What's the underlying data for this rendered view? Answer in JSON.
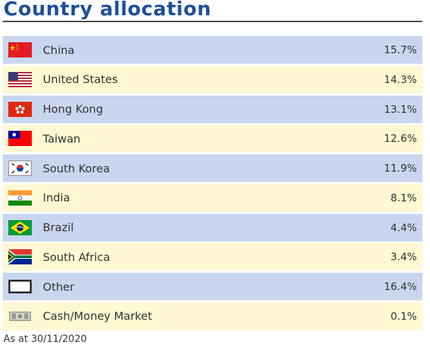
{
  "title": "Country allocation",
  "rows": [
    {
      "name": "China",
      "percent": "15.7%",
      "icon": "china-flag-icon"
    },
    {
      "name": "United States",
      "percent": "14.3%",
      "icon": "us-flag-icon"
    },
    {
      "name": "Hong Kong",
      "percent": "13.1%",
      "icon": "hong-kong-flag-icon"
    },
    {
      "name": "Taiwan",
      "percent": "12.6%",
      "icon": "taiwan-flag-icon"
    },
    {
      "name": "South Korea",
      "percent": "11.9%",
      "icon": "south-korea-flag-icon"
    },
    {
      "name": "India",
      "percent": "8.1%",
      "icon": "india-flag-icon"
    },
    {
      "name": "Brazil",
      "percent": "4.4%",
      "icon": "brazil-flag-icon"
    },
    {
      "name": "South Africa",
      "percent": "3.4%",
      "icon": "south-africa-flag-icon"
    },
    {
      "name": "Other",
      "percent": "16.4%",
      "icon": "other-box-icon"
    },
    {
      "name": "Cash/Money Market",
      "percent": "0.1%",
      "icon": "cash-icon"
    }
  ],
  "footnote": "As at 30/11/2020",
  "colors": {
    "title": "#1e4f9b",
    "row_blue": "#c8d7ef",
    "row_yellow": "#fff8d3"
  }
}
